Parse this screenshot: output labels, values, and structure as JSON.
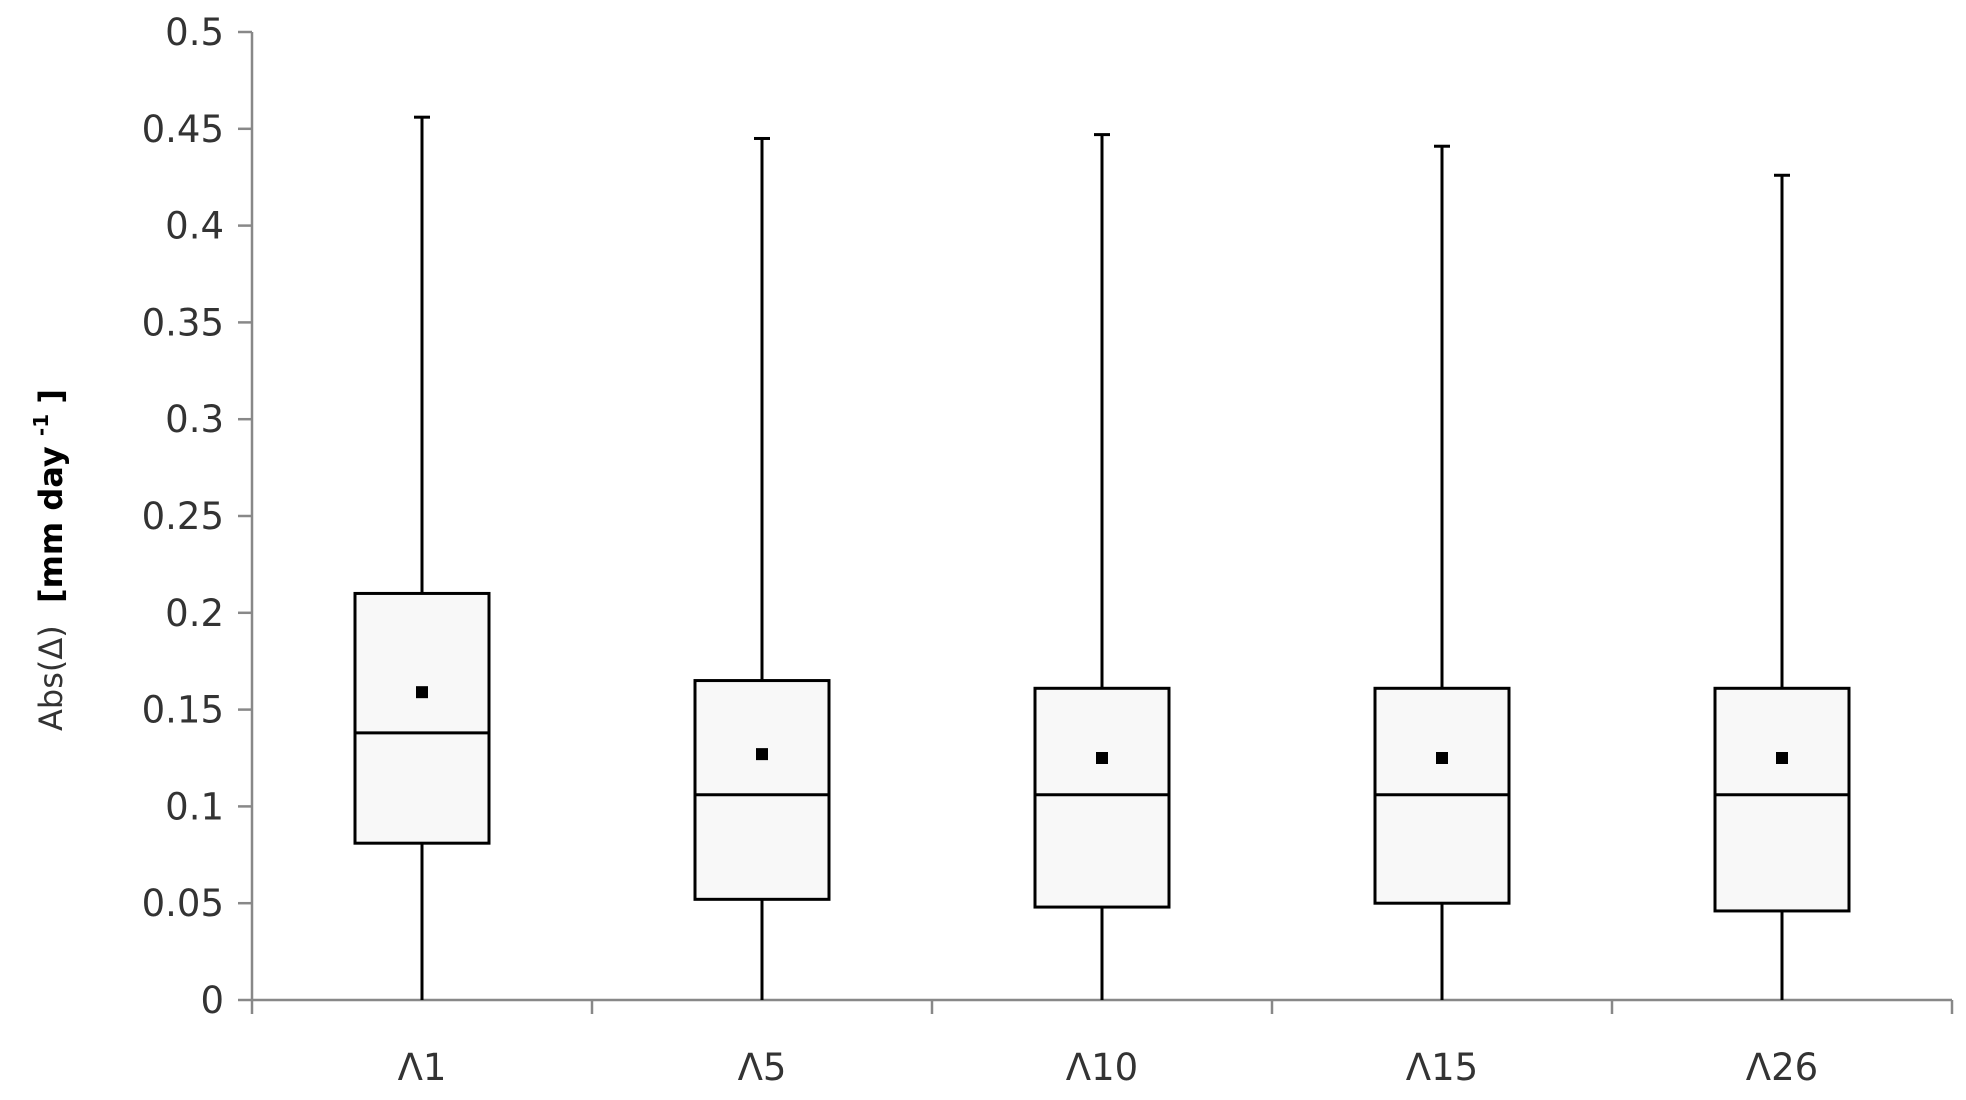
{
  "chart_data": {
    "type": "box",
    "ylabel": "Abs(Δ)",
    "ylabel_unit_prefix": "[mm day",
    "ylabel_unit_exp": "-1",
    "ylabel_unit_suffix": "]",
    "ylim": [
      0,
      0.5
    ],
    "yticks": [
      "0",
      "0.05",
      "0.1",
      "0.15",
      "0.2",
      "0.25",
      "0.3",
      "0.35",
      "0.4",
      "0.45",
      "0.5"
    ],
    "grid": false,
    "categories": [
      "Λ1",
      "Λ5",
      "Λ10",
      "Λ15",
      "Λ26"
    ],
    "boxes": [
      {
        "min": 0,
        "q1": 0.081,
        "median": 0.138,
        "q3": 0.21,
        "max": 0.456,
        "mean": 0.159
      },
      {
        "min": 0,
        "q1": 0.052,
        "median": 0.106,
        "q3": 0.165,
        "max": 0.445,
        "mean": 0.127
      },
      {
        "min": 0,
        "q1": 0.048,
        "median": 0.106,
        "q3": 0.161,
        "max": 0.447,
        "mean": 0.125
      },
      {
        "min": 0,
        "q1": 0.05,
        "median": 0.106,
        "q3": 0.161,
        "max": 0.441,
        "mean": 0.125
      },
      {
        "min": 0,
        "q1": 0.046,
        "median": 0.106,
        "q3": 0.161,
        "max": 0.426,
        "mean": 0.125
      }
    ]
  }
}
